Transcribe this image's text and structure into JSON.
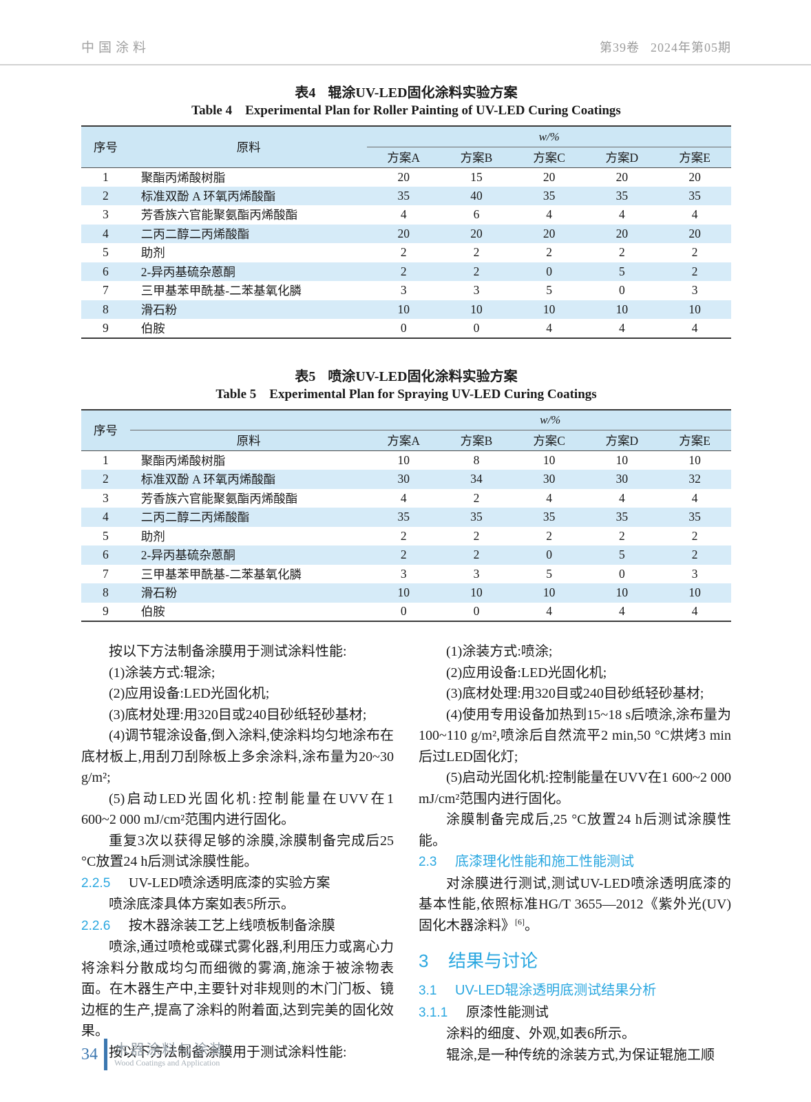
{
  "colors": {
    "accent_blue": "#2AA7E0",
    "table_header_bg": "#CDE7F5",
    "table_stripe_bg": "#D6EBF8",
    "footer_blue": "#3B77B0",
    "header_gray": "#9E9E9E"
  },
  "header": {
    "journal": "中国涂料",
    "volume": "第39卷",
    "issue": "2024年第05期"
  },
  "table4": {
    "caption_label_zh": "表4",
    "caption_text_zh": "辊涂UV-LED固化涂料实验方案",
    "caption_label_en": "Table 4",
    "caption_text_en": "Experimental Plan for Roller Painting of UV-LED Curing Coatings",
    "header": {
      "index": "序号",
      "material": "原料",
      "unit": "w/%",
      "schemes": [
        "方案A",
        "方案B",
        "方案C",
        "方案D",
        "方案E"
      ]
    },
    "rows": [
      {
        "no": "1",
        "material": "聚酯丙烯酸树脂",
        "values": [
          "20",
          "15",
          "20",
          "20",
          "20"
        ]
      },
      {
        "no": "2",
        "material": "标准双酚 A 环氧丙烯酸酯",
        "values": [
          "35",
          "40",
          "35",
          "35",
          "35"
        ]
      },
      {
        "no": "3",
        "material": "芳香族六官能聚氨酯丙烯酸酯",
        "values": [
          "4",
          "6",
          "4",
          "4",
          "4"
        ]
      },
      {
        "no": "4",
        "material": "二丙二醇二丙烯酸酯",
        "values": [
          "20",
          "20",
          "20",
          "20",
          "20"
        ]
      },
      {
        "no": "5",
        "material": "助剂",
        "values": [
          "2",
          "2",
          "2",
          "2",
          "2"
        ]
      },
      {
        "no": "6",
        "material": "2-异丙基硫杂蒽酮",
        "values": [
          "2",
          "2",
          "0",
          "5",
          "2"
        ]
      },
      {
        "no": "7",
        "material": "三甲基苯甲酰基-二苯基氧化膦",
        "values": [
          "3",
          "3",
          "5",
          "0",
          "3"
        ]
      },
      {
        "no": "8",
        "material": "滑石粉",
        "values": [
          "10",
          "10",
          "10",
          "10",
          "10"
        ]
      },
      {
        "no": "9",
        "material": "伯胺",
        "values": [
          "0",
          "0",
          "4",
          "4",
          "4"
        ]
      }
    ]
  },
  "table5": {
    "caption_label_zh": "表5",
    "caption_text_zh": "喷涂UV-LED固化涂料实验方案",
    "caption_label_en": "Table 5",
    "caption_text_en": "Experimental Plan for Spraying UV-LED Curing Coatings",
    "header": {
      "index": "序号",
      "material": "原料",
      "unit": "w/%",
      "schemes": [
        "方案A",
        "方案B",
        "方案C",
        "方案D",
        "方案E"
      ]
    },
    "rows": [
      {
        "no": "1",
        "material": "聚酯丙烯酸树脂",
        "values": [
          "10",
          "8",
          "10",
          "10",
          "10"
        ]
      },
      {
        "no": "2",
        "material": "标准双酚 A 环氧丙烯酸酯",
        "values": [
          "30",
          "34",
          "30",
          "30",
          "32"
        ]
      },
      {
        "no": "3",
        "material": "芳香族六官能聚氨酯丙烯酸酯",
        "values": [
          "4",
          "2",
          "4",
          "4",
          "4"
        ]
      },
      {
        "no": "4",
        "material": "二丙二醇二丙烯酸酯",
        "values": [
          "35",
          "35",
          "35",
          "35",
          "35"
        ]
      },
      {
        "no": "5",
        "material": "助剂",
        "values": [
          "2",
          "2",
          "2",
          "2",
          "2"
        ]
      },
      {
        "no": "6",
        "material": "2-异丙基硫杂蒽酮",
        "values": [
          "2",
          "2",
          "0",
          "5",
          "2"
        ]
      },
      {
        "no": "7",
        "material": "三甲基苯甲酰基-二苯基氧化膦",
        "values": [
          "3",
          "3",
          "5",
          "0",
          "3"
        ]
      },
      {
        "no": "8",
        "material": "滑石粉",
        "values": [
          "10",
          "10",
          "10",
          "10",
          "10"
        ]
      },
      {
        "no": "9",
        "material": "伯胺",
        "values": [
          "0",
          "0",
          "4",
          "4",
          "4"
        ]
      }
    ]
  },
  "left": {
    "p1": "按以下方法制备涂膜用于测试涂料性能:",
    "i1": "(1)涂装方式:辊涂;",
    "i2": "(2)应用设备:LED光固化机;",
    "i3": "(3)底材处理:用320目或240目砂纸轻砂基材;",
    "i4": "(4)调节辊涂设备,倒入涂料,使涂料均匀地涂布在底材板上,用刮刀刮除板上多余涂料,涂布量为20~30 g/m²;",
    "i5": "(5)启动LED光固化机:控制能量在UVV在1 600~2 000 mJ/cm²范围内进行固化。",
    "p2": "重复3次以获得足够的涂膜,涂膜制备完成后25 °C放置24 h后测试涂膜性能。",
    "h225": {
      "num": "2.2.5",
      "title": "UV-LED喷涂透明底漆的实验方案"
    },
    "p3": "喷涂底漆具体方案如表5所示。",
    "h226": {
      "num": "2.2.6",
      "title": "按木器涂装工艺上线喷板制备涂膜"
    },
    "p4": "喷涂,通过喷枪或碟式雾化器,利用压力或离心力将涂料分散成均匀而细微的雾滴,施涂于被涂物表面。在木器生产中,主要针对非规则的木门门板、镜边框的生产,提高了涂料的附着面,达到完美的固化效果。",
    "p5": "按以下方法制备涂膜用于测试涂料性能:"
  },
  "right": {
    "i1": "(1)涂装方式:喷涂;",
    "i2": "(2)应用设备:LED光固化机;",
    "i3": "(3)底材处理:用320目或240目砂纸轻砂基材;",
    "i4": "(4)使用专用设备加热到15~18 s后喷涂,涂布量为100~110 g/m²,喷涂后自然流平2 min,50 °C烘烤3 min后过LED固化灯;",
    "i5": "(5)启动光固化机:控制能量在UVV在1 600~2 000 mJ/cm²范围内进行固化。",
    "p1": "涂膜制备完成后,25 °C放置24 h后测试涂膜性能。",
    "h23": {
      "num": "2.3",
      "title": "底漆理化性能和施工性能测试"
    },
    "p2a": "对涂膜进行测试,测试UV-LED喷涂透明底漆的基本性能,依照标准HG/T 3655—2012《紫外光(UV)固化木器涂料》",
    "p2sup": "[6]",
    "p2b": "。",
    "h3": {
      "num": "3",
      "title": "结果与讨论"
    },
    "h31": {
      "num": "3.1",
      "title": "UV-LED辊涂透明底测试结果分析"
    },
    "h311": {
      "num": "3.1.1",
      "title": "原漆性能测试"
    },
    "p3": "涂料的细度、外观,如表6所示。",
    "p4": "辊涂,是一种传统的涂装方式,为保证辊施工顺"
  },
  "footer": {
    "page_number": "34",
    "journal_cn": "木器涂料与涂装",
    "journal_en": "Wood Coatings and Application"
  }
}
